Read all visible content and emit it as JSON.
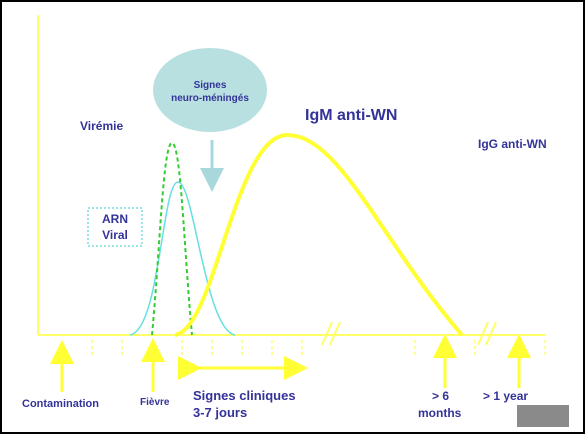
{
  "labels": {
    "bubble": [
      "Signes",
      "neuro-méningés"
    ],
    "viremia": "Virémie",
    "igm": "IgM anti-WN",
    "igg": "IgG anti-WN",
    "arn": [
      "ARN",
      "Viral"
    ],
    "contamination": "Contamination",
    "fever": "Fièvre",
    "clinical": [
      "Signes cliniques",
      "3-7 jours"
    ],
    "six_months": [
      "> 6",
      "months"
    ],
    "one_year": "> 1 year"
  }
}
